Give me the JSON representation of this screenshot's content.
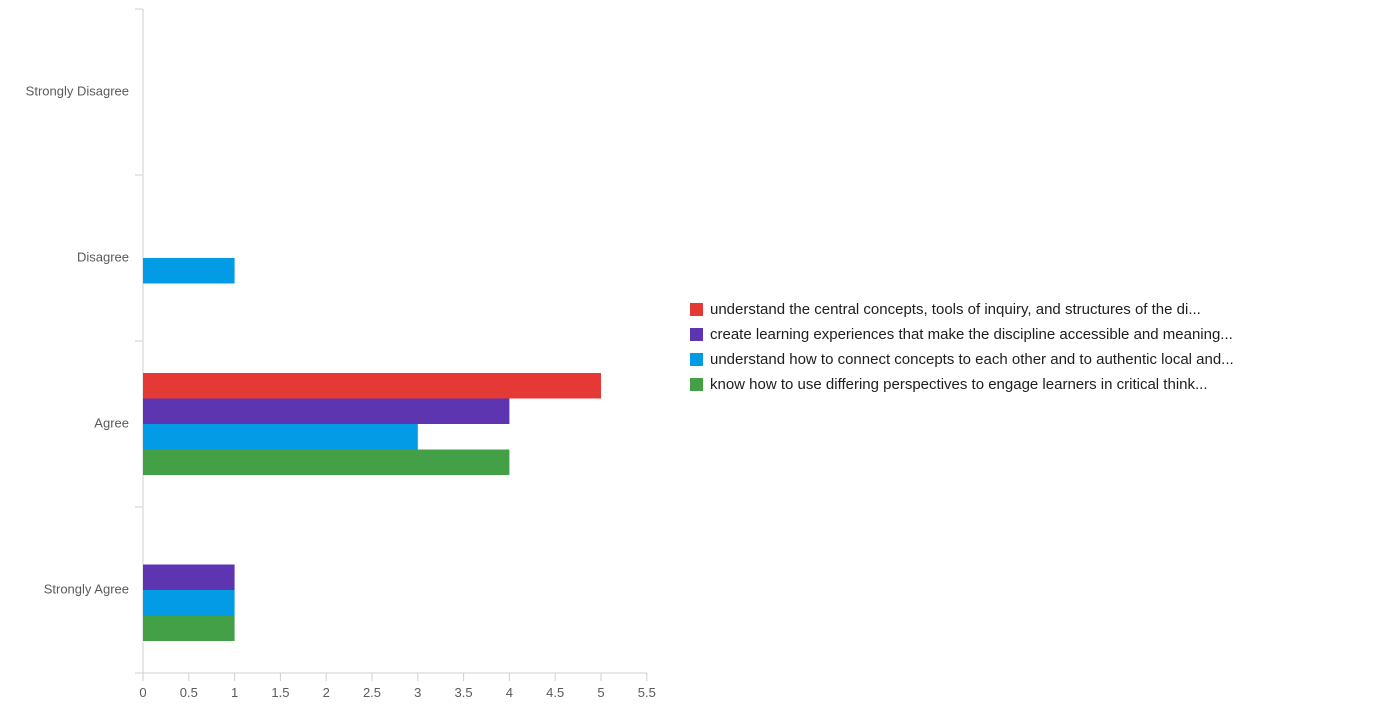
{
  "chart_data": {
    "type": "bar",
    "orientation": "horizontal",
    "categories": [
      "Strongly Disagree",
      "Disagree",
      "Agree",
      "Strongly Agree"
    ],
    "series": [
      {
        "name": "understand the central concepts, tools of inquiry, and structures of the di...",
        "color": "#e53935",
        "values": [
          0,
          0,
          5,
          0
        ]
      },
      {
        "name": "create learning experiences that make the discipline accessible and meaning...",
        "color": "#5e35b1",
        "values": [
          0,
          0,
          4,
          1
        ]
      },
      {
        "name": "understand how to connect concepts to each other and to authentic local and...",
        "color": "#039be5",
        "values": [
          0,
          1,
          3,
          1
        ]
      },
      {
        "name": "know how to use differing perspectives to engage learners in critical think...",
        "color": "#43a047",
        "values": [
          0,
          0,
          4,
          1
        ]
      }
    ],
    "x_ticks": [
      "0",
      "0.5",
      "1",
      "1.5",
      "2",
      "2.5",
      "3",
      "3.5",
      "4",
      "4.5",
      "5",
      "5.5"
    ],
    "xlim": [
      0,
      5.5
    ],
    "xlabel": "",
    "ylabel": "",
    "grid": false,
    "legend_position": "right"
  }
}
